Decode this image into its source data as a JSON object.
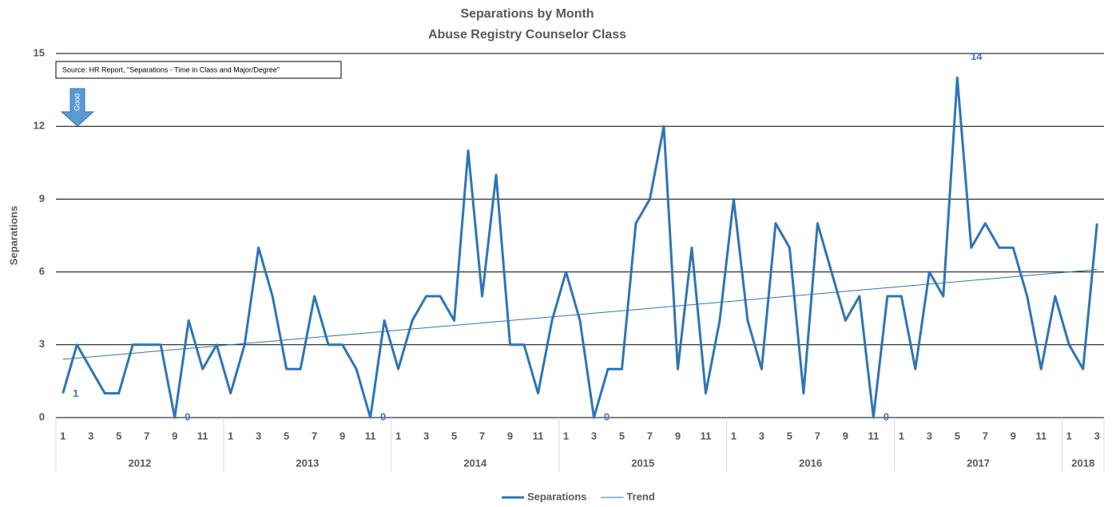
{
  "chart_data": {
    "type": "line",
    "title": "Separations by Month",
    "subtitle": "Abuse Registry Counselor Class",
    "y_label": "Separations",
    "source_note": "Source: HR Report, \"Separations - Time in Class and Major/Degree\"",
    "arrow_note": "Good",
    "categories": [
      "1",
      null,
      "3",
      null,
      "5",
      null,
      "7",
      null,
      "9",
      null,
      "11",
      null,
      "1",
      null,
      "3",
      null,
      "5",
      null,
      "7",
      null,
      "9",
      null,
      "11",
      null,
      "1",
      null,
      "3",
      null,
      "5",
      null,
      "7",
      null,
      "9",
      null,
      "11",
      null,
      "1",
      null,
      "3",
      null,
      "5",
      null,
      "7",
      null,
      "9",
      null,
      "11",
      null,
      "1",
      null,
      "3",
      null,
      "5",
      null,
      "7",
      null,
      "9",
      null,
      "11",
      null,
      "1",
      null,
      "3",
      null,
      "5",
      null,
      "7",
      null,
      "9",
      null,
      "11",
      null,
      "1",
      null,
      "3"
    ],
    "x_groups": [
      {
        "label": "2012",
        "count": 12
      },
      {
        "label": "2013",
        "count": 12
      },
      {
        "label": "2014",
        "count": 12
      },
      {
        "label": "2015",
        "count": 12
      },
      {
        "label": "2016",
        "count": 12
      },
      {
        "label": "2017",
        "count": 12
      },
      {
        "label": "2018",
        "count": 3
      }
    ],
    "series": [
      {
        "name": "Separations",
        "color": "#2e75b6",
        "width": 3,
        "values": [
          1,
          3,
          2,
          1,
          1,
          3,
          3,
          3,
          0,
          4,
          2,
          3,
          1,
          3,
          7,
          5,
          2,
          2,
          5,
          3,
          3,
          2,
          0,
          4,
          2,
          4,
          5,
          5,
          4,
          11,
          5,
          10,
          3,
          3,
          1,
          4,
          6,
          4,
          0,
          2,
          2,
          8,
          9,
          12,
          2,
          7,
          1,
          4,
          9,
          4,
          2,
          8,
          7,
          1,
          8,
          6,
          4,
          5,
          0,
          5,
          5,
          2,
          6,
          5,
          14,
          7,
          8,
          7,
          7,
          5,
          2,
          5,
          3,
          2,
          8
        ],
        "labeled_points": [
          0,
          8,
          22,
          38,
          58,
          64,
          74
        ]
      },
      {
        "name": "Trend",
        "color": "#2e75b6",
        "width": 1,
        "values": [
          2.4,
          2.45,
          2.5,
          2.55,
          2.6,
          2.65,
          2.7,
          2.75,
          2.8,
          2.85,
          2.9,
          2.95,
          3.0,
          3.05,
          3.1,
          3.15,
          3.2,
          3.25,
          3.3,
          3.35,
          3.4,
          3.45,
          3.5,
          3.55,
          3.6,
          3.65,
          3.7,
          3.75,
          3.8,
          3.85,
          3.9,
          3.95,
          4.0,
          4.05,
          4.1,
          4.15,
          4.2,
          4.25,
          4.3,
          4.35,
          4.4,
          4.45,
          4.5,
          4.55,
          4.6,
          4.65,
          4.7,
          4.75,
          4.8,
          4.85,
          4.9,
          4.95,
          5.0,
          5.05,
          5.1,
          5.15,
          5.2,
          5.25,
          5.3,
          5.35,
          5.4,
          5.45,
          5.5,
          5.55,
          5.6,
          5.65,
          5.7,
          5.75,
          5.8,
          5.85,
          5.9,
          5.95,
          6.0,
          6.05,
          6.1
        ]
      }
    ],
    "ylim": [
      0,
      15
    ],
    "yticks": [
      0,
      3,
      6,
      9,
      12,
      15
    ],
    "grid": true,
    "legend": "bottom"
  }
}
